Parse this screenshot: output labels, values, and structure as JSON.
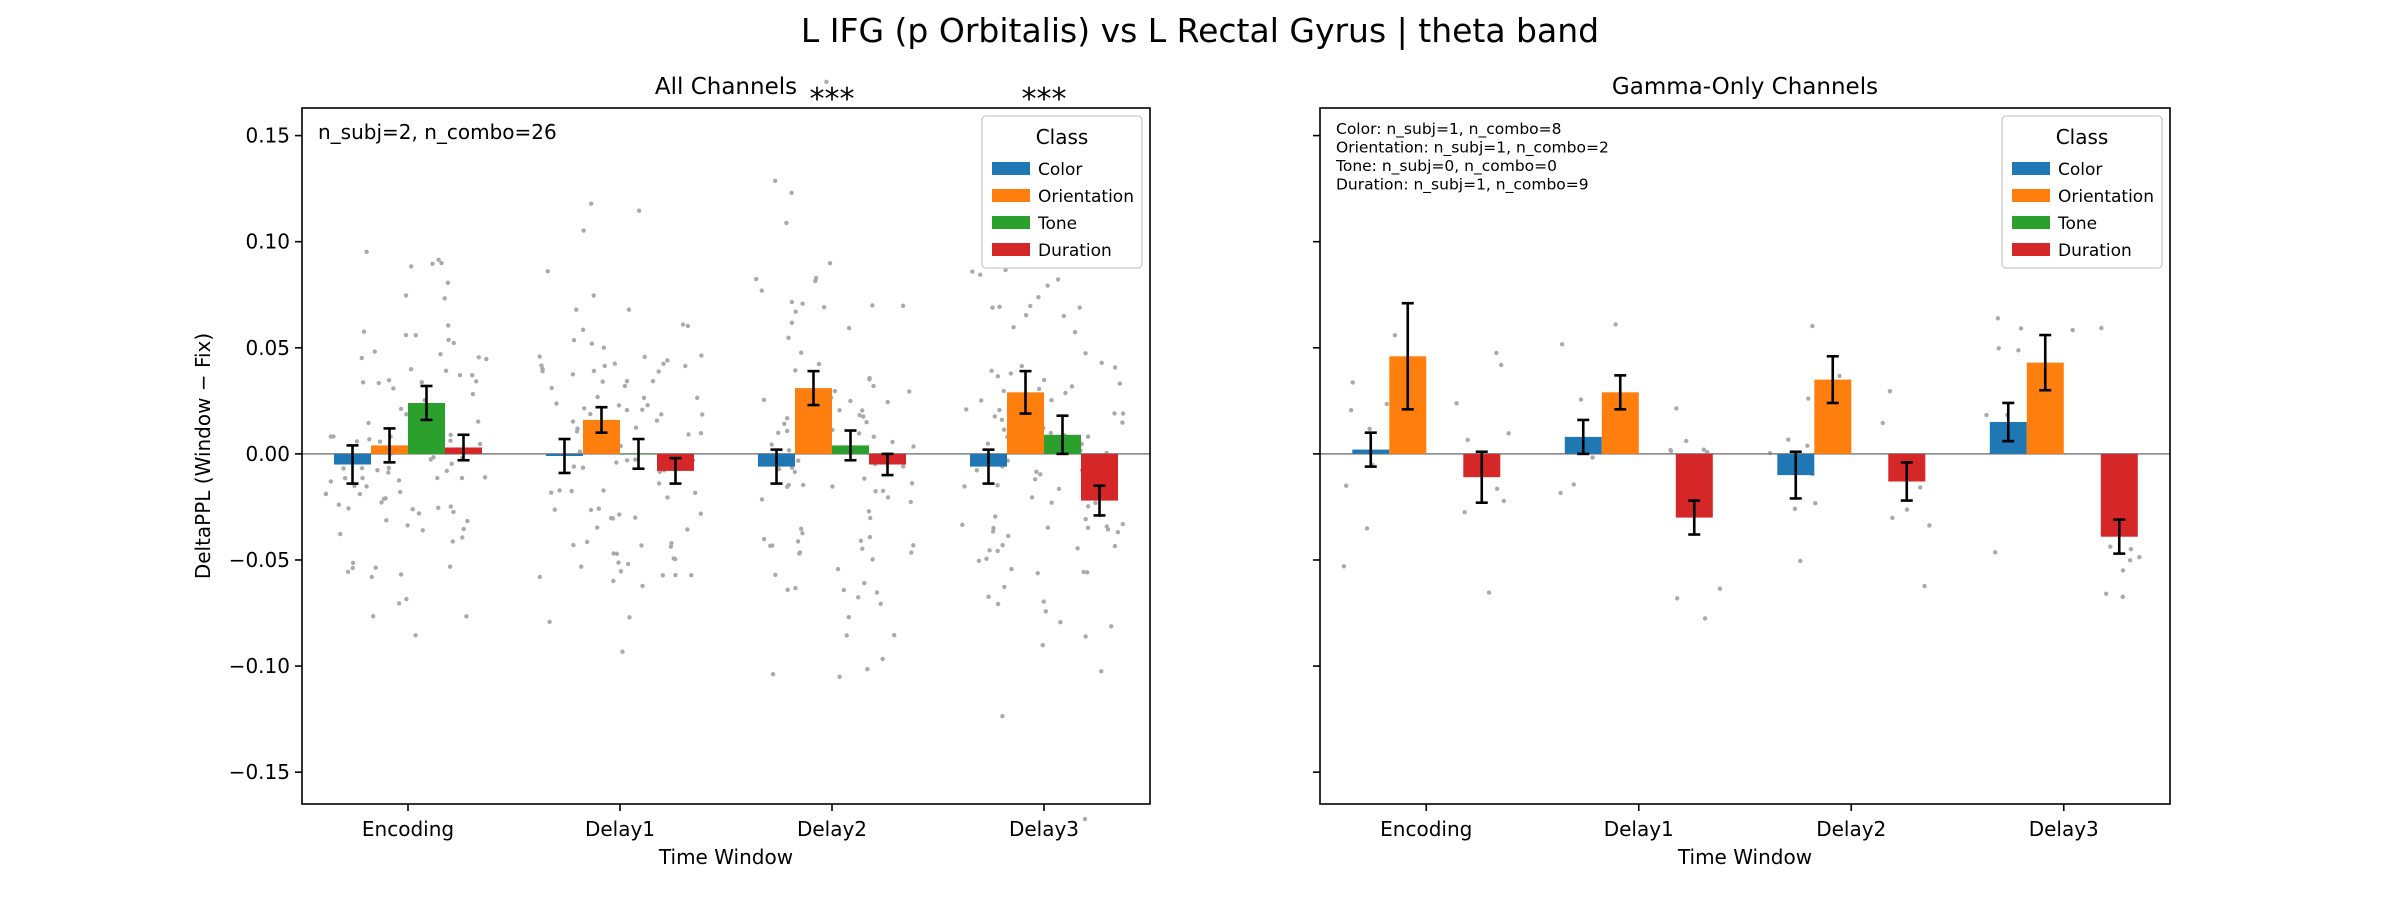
{
  "figure_title": "L IFG (p Orbitalis) vs L Rectal Gyrus  |  theta band",
  "colors": {
    "Color": "#1f77b4",
    "Orientation": "#ff7f0e",
    "Tone": "#2ca02c",
    "Duration": "#d62728",
    "significance": "#ff0000",
    "points": "#aaaaaa",
    "zero_line": "#808080"
  },
  "chart_data": [
    {
      "type": "bar",
      "title": "All Channels",
      "xlabel": "Time Window",
      "ylabel": "DeltaPPL (Window − Fix)",
      "ylim": [
        -0.165,
        0.163
      ],
      "yticks": [
        -0.15,
        -0.1,
        -0.05,
        0.0,
        0.05,
        0.1,
        0.15
      ],
      "ytick_labels": [
        "−0.15",
        "−0.10",
        "−0.05",
        "0.00",
        "0.05",
        "0.10",
        "0.15"
      ],
      "grid": false,
      "legend_title": "Class",
      "legend_position": "upper right",
      "annotation": [
        "n_subj=2, n_combo=26"
      ],
      "categories": [
        "Encoding",
        "Delay1",
        "Delay2",
        "Delay3"
      ],
      "significance": [
        "",
        "",
        "***",
        "***"
      ],
      "series": [
        {
          "name": "Color",
          "values": [
            -0.005,
            -0.001,
            -0.006,
            -0.006
          ],
          "errors": [
            0.009,
            0.008,
            0.008,
            0.008
          ]
        },
        {
          "name": "Orientation",
          "values": [
            0.004,
            0.016,
            0.031,
            0.029
          ],
          "errors": [
            0.008,
            0.006,
            0.008,
            0.01
          ]
        },
        {
          "name": "Tone",
          "values": [
            0.024,
            0.0,
            0.004,
            0.009
          ],
          "errors": [
            0.008,
            0.007,
            0.007,
            0.009
          ]
        },
        {
          "name": "Duration",
          "values": [
            0.003,
            -0.008,
            -0.005,
            -0.022
          ],
          "errors": [
            0.006,
            0.006,
            0.005,
            0.007
          ]
        }
      ]
    },
    {
      "type": "bar",
      "title": "Gamma-Only Channels",
      "xlabel": "Time Window",
      "ylabel": "",
      "ylim": [
        -0.165,
        0.163
      ],
      "yticks": [
        -0.15,
        -0.1,
        -0.05,
        0.0,
        0.05,
        0.1,
        0.15
      ],
      "ytick_labels": [
        "",
        "",
        "",
        "",
        "",
        "",
        ""
      ],
      "grid": false,
      "legend_title": "Class",
      "legend_position": "upper right",
      "annotation": [
        "Color: n_subj=1, n_combo=8",
        "Orientation: n_subj=1, n_combo=2",
        "Tone: n_subj=0, n_combo=0",
        "Duration: n_subj=1, n_combo=9"
      ],
      "categories": [
        "Encoding",
        "Delay1",
        "Delay2",
        "Delay3"
      ],
      "significance": [
        "",
        "",
        "",
        ""
      ],
      "series": [
        {
          "name": "Color",
          "values": [
            0.002,
            0.008,
            -0.01,
            0.015
          ],
          "errors": [
            0.008,
            0.008,
            0.011,
            0.009
          ]
        },
        {
          "name": "Orientation",
          "values": [
            0.046,
            0.029,
            0.035,
            0.043
          ],
          "errors": [
            0.025,
            0.008,
            0.011,
            0.013
          ]
        },
        {
          "name": "Tone",
          "values": [
            0,
            0,
            0,
            0
          ],
          "errors": [
            0,
            0,
            0,
            0
          ]
        },
        {
          "name": "Duration",
          "values": [
            -0.011,
            -0.03,
            -0.013,
            -0.039
          ],
          "errors": [
            0.012,
            0.008,
            0.009,
            0.008
          ]
        }
      ]
    }
  ]
}
